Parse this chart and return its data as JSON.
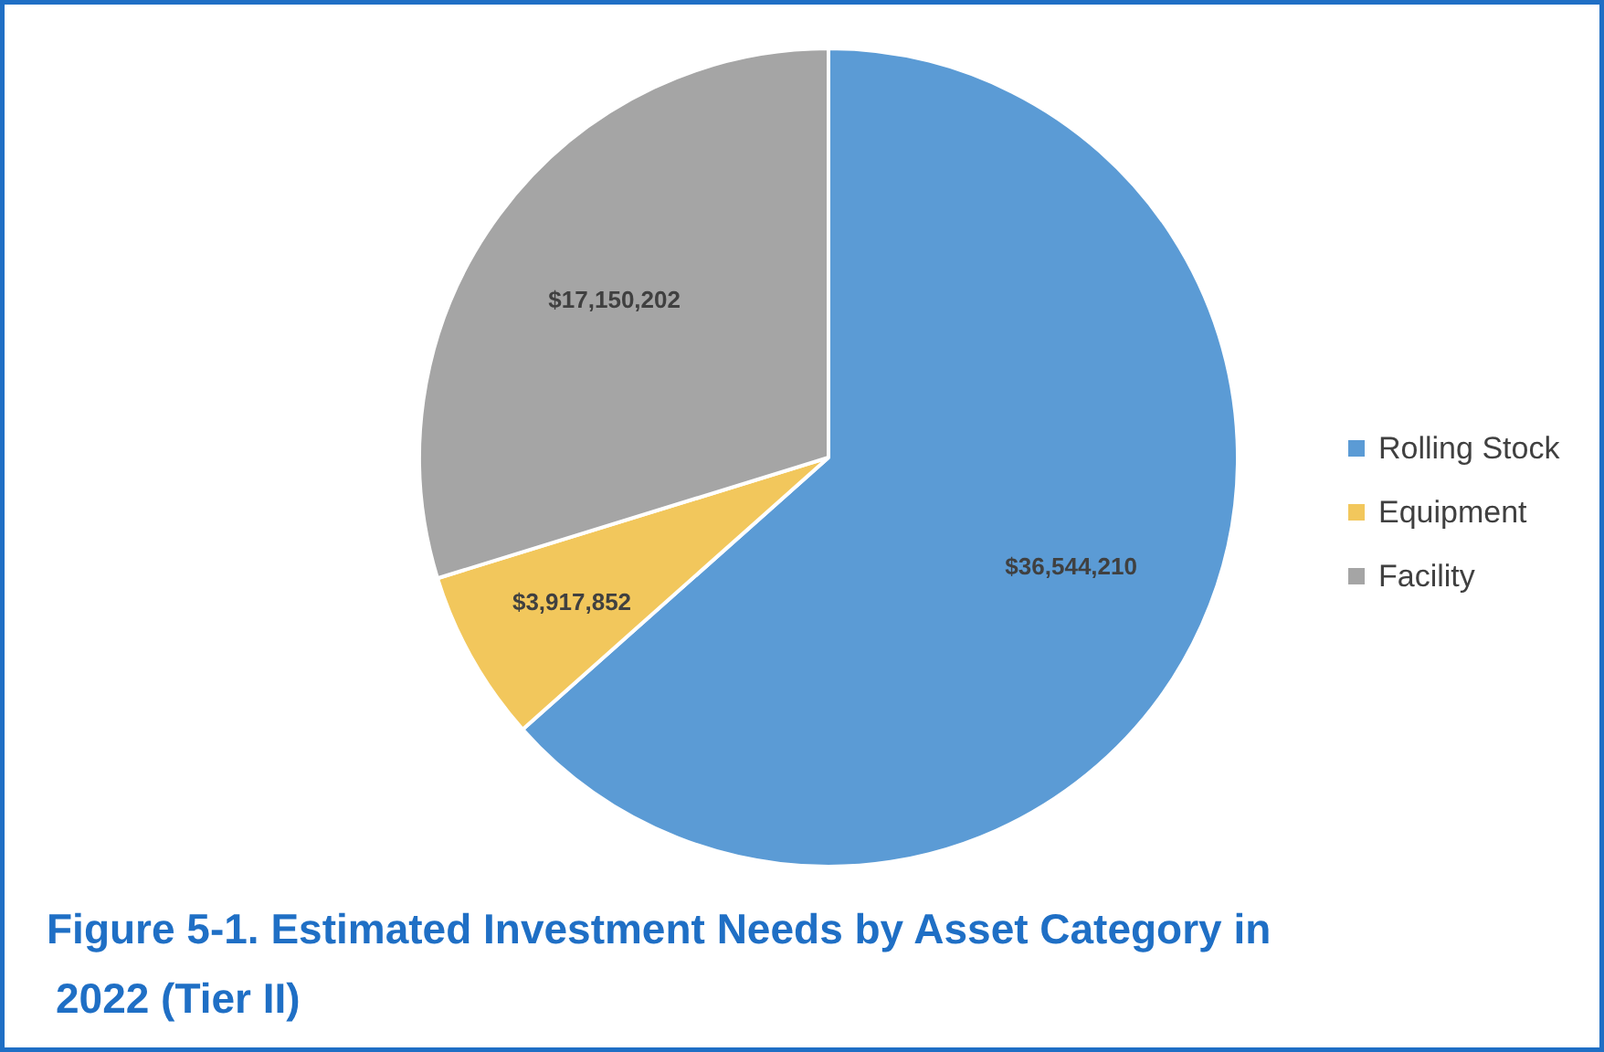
{
  "chart_data": {
    "type": "pie",
    "title": "Figure 5-1. Estimated Investment Needs by Asset Category in 2022 (Tier II)",
    "categories": [
      "Rolling Stock",
      "Equipment",
      "Facility"
    ],
    "values": [
      36544210,
      3917852,
      17150202
    ],
    "colors": [
      "#5b9bd5",
      "#f2c75c",
      "#a5a5a5"
    ],
    "value_labels": [
      "$36,544,210",
      "$3,917,852",
      "$17,150,202"
    ],
    "legend": "right"
  }
}
